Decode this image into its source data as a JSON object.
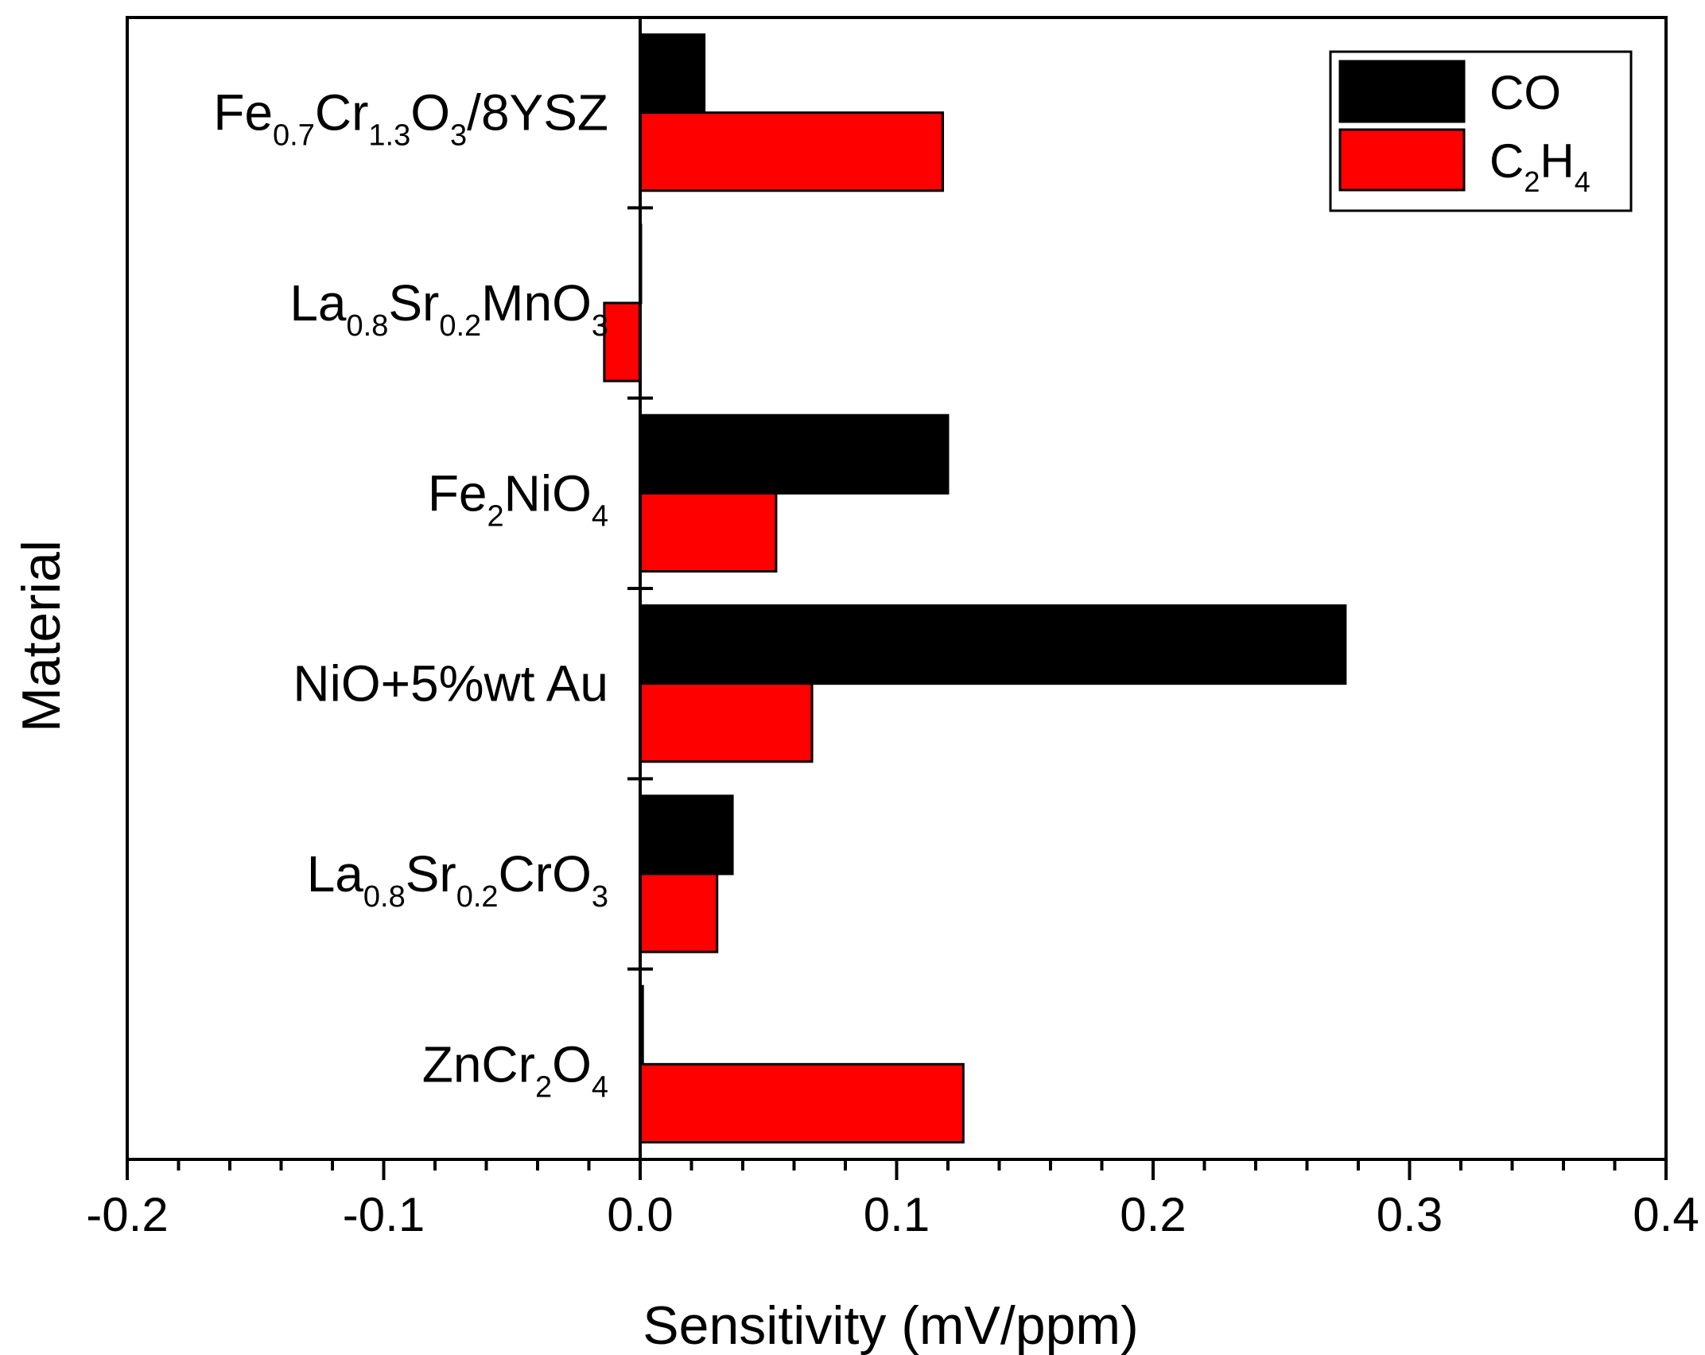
{
  "chart_data": {
    "type": "bar",
    "orientation": "horizontal",
    "xlabel": "Sensitivity (mV/ppm)",
    "ylabel": "Material",
    "xlim": [
      -0.2,
      0.4
    ],
    "xticks": [
      "-0.2",
      "-0.1",
      "0.0",
      "0.1",
      "0.2",
      "0.3",
      "0.4"
    ],
    "grid": false,
    "legend_position": "top-right",
    "categories": [
      {
        "parts": [
          [
            "Fe",
            ""
          ],
          [
            "0.7",
            "sub"
          ],
          [
            "Cr",
            ""
          ],
          [
            "1.3",
            "sub"
          ],
          [
            "O",
            ""
          ],
          [
            "3",
            "sub"
          ],
          [
            "/8YSZ",
            ""
          ]
        ]
      },
      {
        "parts": [
          [
            "La",
            ""
          ],
          [
            "0.8",
            "sub"
          ],
          [
            "Sr",
            ""
          ],
          [
            "0.2",
            "sub"
          ],
          [
            "MnO",
            ""
          ],
          [
            "3",
            "sub"
          ]
        ]
      },
      {
        "parts": [
          [
            "Fe",
            ""
          ],
          [
            "2",
            "sub"
          ],
          [
            "NiO",
            ""
          ],
          [
            "4",
            "sub"
          ]
        ]
      },
      {
        "parts": [
          [
            "NiO+5%wt Au",
            ""
          ]
        ]
      },
      {
        "parts": [
          [
            "La",
            ""
          ],
          [
            "0.8",
            "sub"
          ],
          [
            "Sr",
            ""
          ],
          [
            "0.2",
            "sub"
          ],
          [
            "CrO",
            ""
          ],
          [
            "3",
            "sub"
          ]
        ]
      },
      {
        "parts": [
          [
            "ZnCr",
            ""
          ],
          [
            "2",
            "sub"
          ],
          [
            "O",
            ""
          ],
          [
            "4",
            "sub"
          ]
        ]
      }
    ],
    "series": [
      {
        "name": "CO",
        "name_parts": [
          [
            "CO",
            ""
          ]
        ],
        "color": "#000000",
        "values": [
          0.025,
          0.0,
          0.12,
          0.275,
          0.036,
          0.001
        ]
      },
      {
        "name": "C2H4",
        "name_parts": [
          [
            "C",
            ""
          ],
          [
            "2",
            "sub"
          ],
          [
            "H",
            ""
          ],
          [
            "4",
            "sub"
          ]
        ],
        "color": "#ff0000",
        "values": [
          0.118,
          -0.014,
          0.053,
          0.067,
          0.03,
          0.126
        ]
      }
    ]
  }
}
